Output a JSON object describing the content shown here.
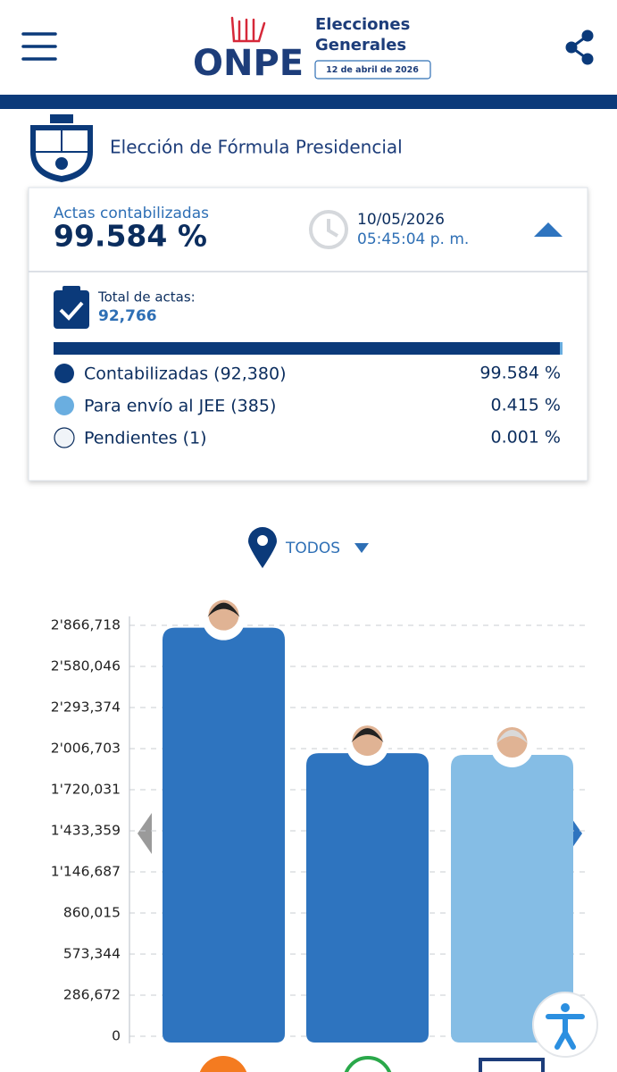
{
  "header": {
    "logo": "ONPE",
    "line1": "Elecciones",
    "line2": "Generales",
    "date": "12 de abril de 2026"
  },
  "section": {
    "title": "Elección de Fórmula Presidencial"
  },
  "summary": {
    "label": "Actas contabilizadas",
    "percent": "99.584 %",
    "date": "10/05/2026",
    "time": "05:45:04 p. m.",
    "total_label": "Total de actas:",
    "total": "92,766",
    "items": [
      {
        "label": "Contabilizadas (92,380)",
        "percent": "99.584 %"
      },
      {
        "label": "Para envío al JEE (385)",
        "percent": "0.415 %"
      },
      {
        "label": "Pendientes (1)",
        "percent": "0.001 %"
      }
    ]
  },
  "filter": {
    "label": "TODOS"
  },
  "chart_data": {
    "type": "bar",
    "categories": [
      null,
      null,
      null
    ],
    "values": [
      2850000,
      1975000,
      1963000
    ],
    "colors": [
      "#2e74bf",
      "#2e74bf",
      "#85bde5"
    ],
    "ylim": [
      0,
      2866718
    ],
    "yticks": [
      0,
      {
        "value": 286672,
        "label": "286,672"
      },
      {
        "value": 573344,
        "label": "573,344"
      },
      {
        "value": 860015,
        "label": "860,015"
      },
      {
        "value": 1146687,
        "label": "1'146,687"
      },
      {
        "value": 1433359,
        "label": "1'433,359"
      },
      {
        "value": 1720031,
        "label": "1'720,031"
      },
      {
        "value": 2006703,
        "label": "2'006,703"
      },
      {
        "value": 2293374,
        "label": "2'293,374"
      },
      {
        "value": 2580046,
        "label": "2'580,046"
      },
      {
        "value": 2866718,
        "label": "2'866,718"
      }
    ],
    "grid": true
  }
}
